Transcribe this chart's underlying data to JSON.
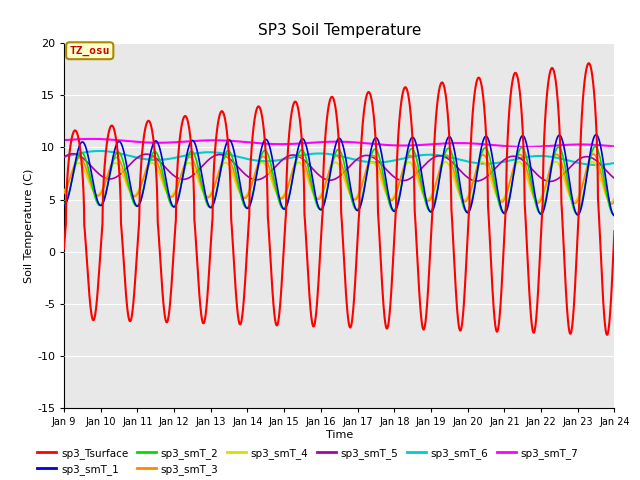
{
  "title": "SP3 Soil Temperature",
  "ylabel": "Soil Temperature (C)",
  "xlabel": "Time",
  "annotation": "TZ_osu",
  "ylim": [
    -15,
    20
  ],
  "xlim_days": [
    9,
    24
  ],
  "xtick_days": [
    9,
    10,
    11,
    12,
    13,
    14,
    15,
    16,
    17,
    18,
    19,
    20,
    21,
    22,
    23,
    24
  ],
  "yticks": [
    -15,
    -10,
    -5,
    0,
    5,
    10,
    15,
    20
  ],
  "bg_color": "#e8e8e8",
  "fig_bg": "#ffffff",
  "series_colors": {
    "sp3_Tsurface": "#ff0000",
    "sp3_smT_1": "#0000dd",
    "sp3_smT_2": "#00dd00",
    "sp3_smT_3": "#ff8800",
    "sp3_smT_4": "#dddd00",
    "sp3_smT_5": "#aa00aa",
    "sp3_smT_6": "#00cccc",
    "sp3_smT_7": "#ff00ff"
  },
  "n_points": 7200,
  "start_day": 9,
  "end_day": 24
}
